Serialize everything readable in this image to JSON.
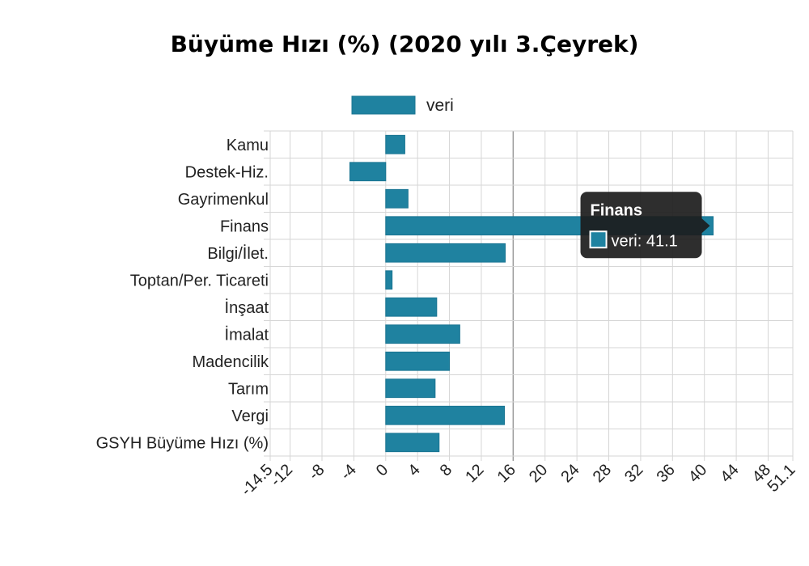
{
  "chart_data": {
    "type": "bar",
    "orientation": "horizontal",
    "title": "Büyüme Hızı (%) (2020 yılı 3.Çeyrek)",
    "categories": [
      "Kamu",
      "Destek-Hiz.",
      "Gayrimenkul",
      "Finans",
      "Bilgi/İlet.",
      "Toptan/Per. Ticareti",
      "İnşaat",
      "İmalat",
      "Madencilik",
      "Tarım",
      "Vergi",
      "GSYH Büyüme Hızı (%)"
    ],
    "series": [
      {
        "name": "veri",
        "values": [
          2.4,
          -4.5,
          2.8,
          41.1,
          15.0,
          0.8,
          6.4,
          9.3,
          8.0,
          6.2,
          14.9,
          6.7
        ]
      }
    ],
    "xlim": [
      -14.5,
      51.1
    ],
    "xticks": [
      "-14.5",
      "-12",
      "-8",
      "-4",
      "0",
      "4",
      "8",
      "12",
      "16",
      "20",
      "24",
      "28",
      "32",
      "36",
      "40",
      "44",
      "48",
      "51.1"
    ],
    "xlabel": "",
    "ylabel": "",
    "legend": {
      "position": "top",
      "label": "veri"
    },
    "grid": true,
    "colors": {
      "bar": "#1f82a0",
      "bar_border": "#1a7592",
      "tooltip_bg": "#1c1c1c"
    },
    "tooltip": {
      "title": "Finans",
      "label": "veri: 41.1",
      "category": "Finans"
    }
  }
}
